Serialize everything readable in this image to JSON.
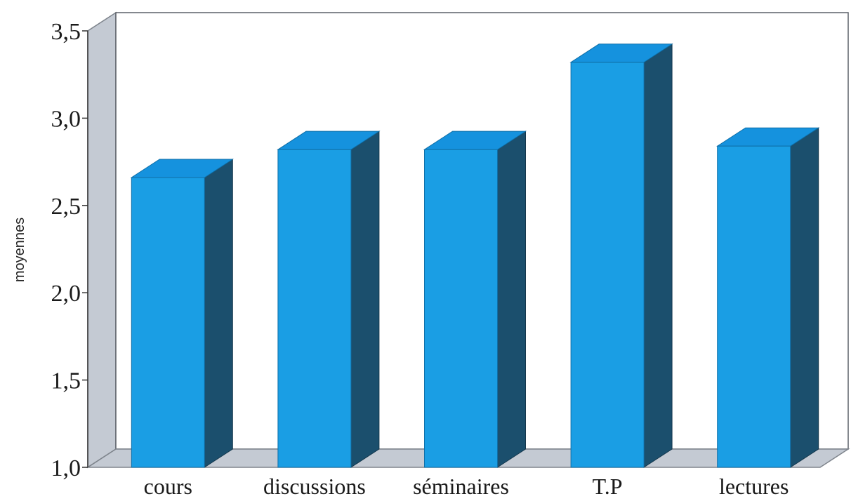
{
  "chart_data": {
    "type": "bar",
    "three_d": true,
    "title": "",
    "xlabel": "",
    "ylabel": "moyennes",
    "categories": [
      "cours",
      "discussions",
      "séminaires",
      "T.P",
      "lectures"
    ],
    "values": [
      2.66,
      2.82,
      2.82,
      3.32,
      2.84
    ],
    "ylim": [
      1.0,
      3.5
    ],
    "yticks": [
      "1,0",
      "1,5",
      "2,0",
      "2,5",
      "3,0",
      "3,5"
    ],
    "ytick_values": [
      1.0,
      1.5,
      2.0,
      2.5,
      3.0,
      3.5
    ],
    "grid": false,
    "legend": "none",
    "colors": {
      "bar_front": "#1a9ee4",
      "bar_top": "#1592de",
      "bar_side": "#1b4f6d",
      "wall": "#c4cad3",
      "floor": "#c4cad3"
    }
  }
}
